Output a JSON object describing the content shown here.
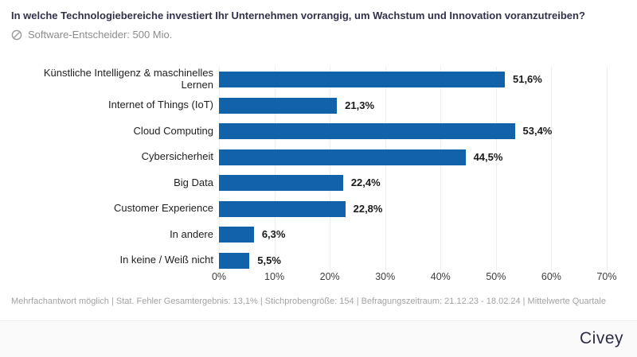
{
  "title": "In welche Technologiebereiche investiert Ihr Unternehmen vorrangig, um Wachstum und Innovation voranzutreiben?",
  "subtitle": {
    "icon": "circle-slash-icon",
    "text": "Software-Entscheider: 500 Mio."
  },
  "chart_data": {
    "type": "bar",
    "orientation": "horizontal",
    "title": "",
    "xlabel": "",
    "ylabel": "",
    "categories": [
      "Künstliche Intelligenz & maschinelles Lernen",
      "Internet of Things (IoT)",
      "Cloud Computing",
      "Cybersicherheit",
      "Big Data",
      "Customer Experience",
      "In andere",
      "In keine / Weiß nicht"
    ],
    "values": [
      51.6,
      21.3,
      53.4,
      44.5,
      22.4,
      22.8,
      6.3,
      5.5
    ],
    "value_labels": [
      "51,6%",
      "21,3%",
      "53,4%",
      "44,5%",
      "22,4%",
      "22,8%",
      "6,3%",
      "5,5%"
    ],
    "xlim": [
      0,
      70
    ],
    "x_tick_values": [
      0,
      10,
      20,
      30,
      40,
      50,
      60,
      70
    ],
    "x_tick_labels": [
      "0%",
      "10%",
      "20%",
      "30%",
      "40%",
      "50%",
      "60%",
      "70%"
    ],
    "grid": true,
    "legend": false,
    "bar_color": "#1162a9",
    "grid_color": "#ededed"
  },
  "footnote": "Mehrfachantwort möglich | Stat. Fehler Gesamtergebnis: 13,1% | Stichprobengröße: 154 | Befragungszeitraum: 21.12.23 - 18.02.24 | Mittelwerte Quartale",
  "brand": {
    "logo_text": "Civey"
  }
}
